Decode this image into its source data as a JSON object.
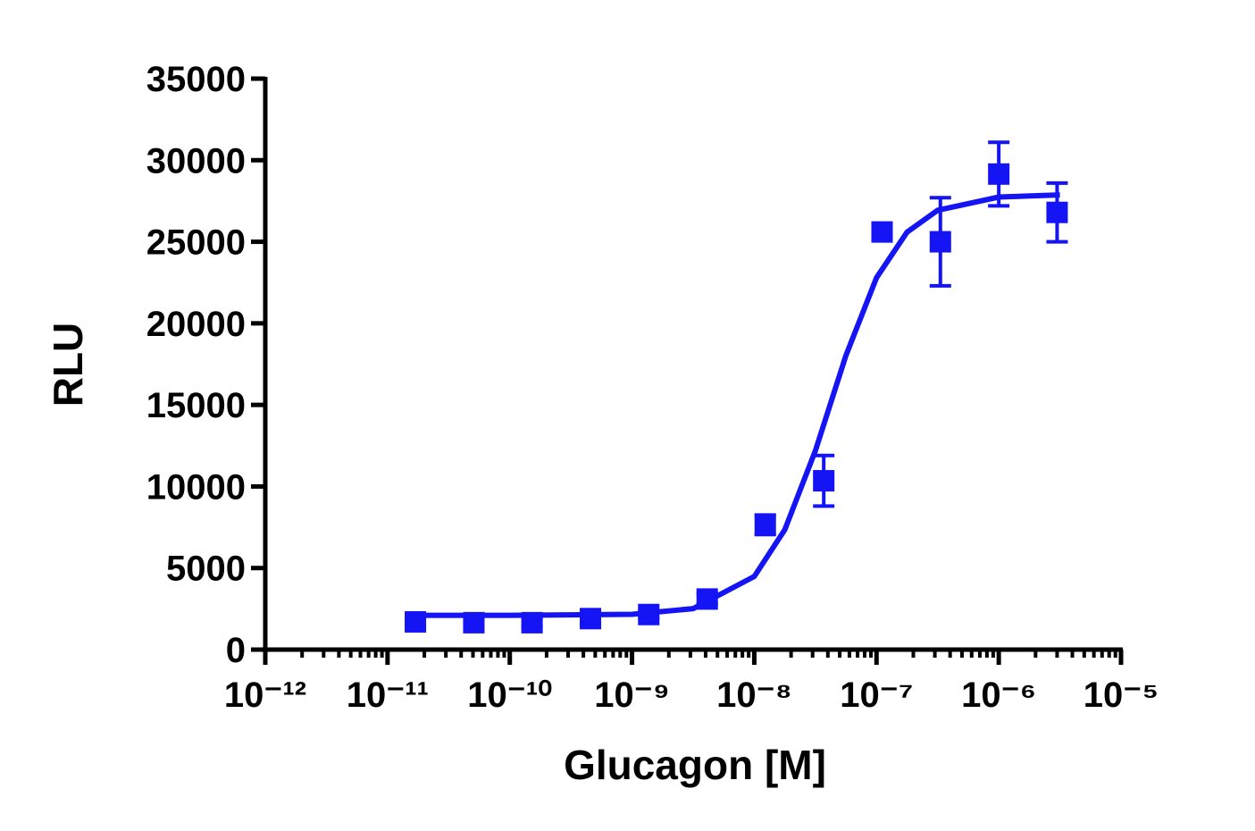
{
  "chart_data": {
    "type": "scatter",
    "x_label": "Glucagon [M]",
    "y_label": "RLU",
    "xscale": "log",
    "xlim": [
      1e-12,
      1e-05
    ],
    "xticks": [
      {
        "value": 1e-12,
        "label": "10⁻¹²"
      },
      {
        "value": 1e-11,
        "label": "10⁻¹¹"
      },
      {
        "value": 1e-10,
        "label": "10⁻¹⁰"
      },
      {
        "value": 1e-09,
        "label": "10⁻⁹"
      },
      {
        "value": 1e-08,
        "label": "10⁻⁸"
      },
      {
        "value": 1e-07,
        "label": "10⁻⁷"
      },
      {
        "value": 1e-06,
        "label": "10⁻⁶"
      },
      {
        "value": 1e-05,
        "label": "10⁻⁵"
      }
    ],
    "ylim": [
      0,
      35000
    ],
    "yticks": [
      0,
      5000,
      10000,
      15000,
      20000,
      25000,
      30000,
      35000
    ],
    "series": [
      {
        "color": "#1414f5",
        "x": [
          1.69e-11,
          5.08e-11,
          1.52e-10,
          4.57e-10,
          1.37e-09,
          4.12e-09,
          1.23e-08,
          3.7e-08,
          1.11e-07,
          3.33e-07,
          1e-06,
          3e-06
        ],
        "values": [
          1700,
          1650,
          1650,
          1900,
          2150,
          3100,
          7650,
          10350,
          25600,
          25000,
          29150,
          26800
        ],
        "errors": [
          250,
          250,
          250,
          250,
          250,
          300,
          600,
          1550,
          400,
          2700,
          1950,
          1800
        ]
      }
    ],
    "fit": {
      "color": "#1414f5",
      "x": [
        1.585e-11,
        1e-10,
        1e-09,
        3.162e-09,
        1e-08,
        1.778e-08,
        3.162e-08,
        5.623e-08,
        1e-07,
        1.778e-07,
        3.162e-07,
        1e-06,
        3.162e-06
      ],
      "values": [
        2100,
        2102,
        2166,
        2511,
        4484,
        7354,
        12194,
        18035,
        22796,
        25593,
        26929,
        27741,
        27875
      ]
    }
  }
}
